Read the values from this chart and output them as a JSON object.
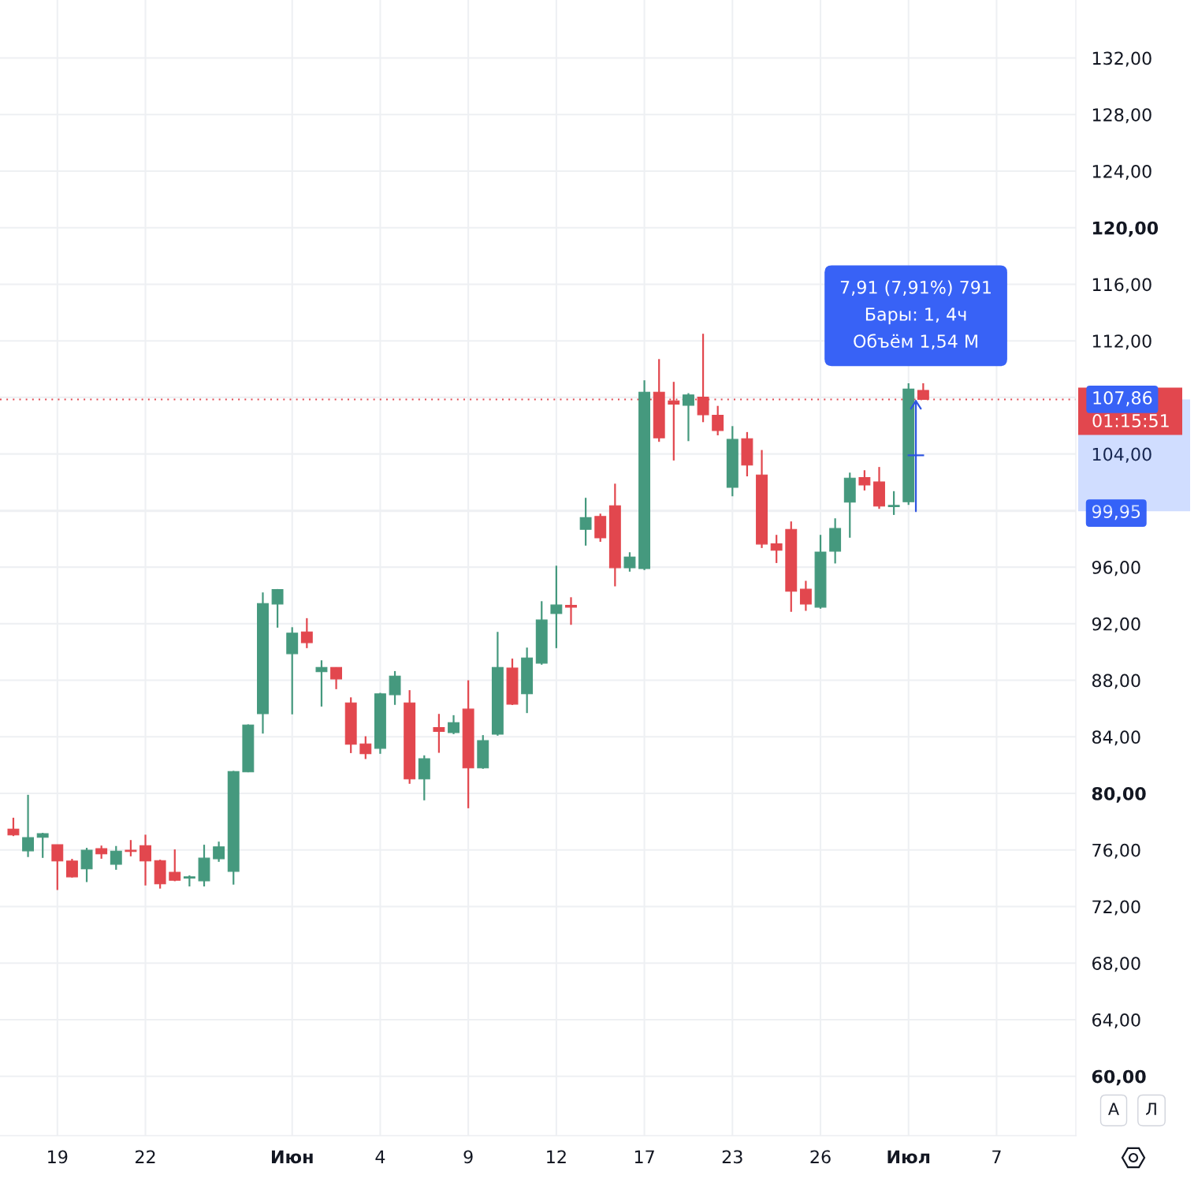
{
  "chart_data": {
    "type": "candlestick",
    "categories": [
      null,
      null,
      null,
      "19",
      null,
      null,
      null,
      null,
      null,
      "22",
      null,
      null,
      null,
      null,
      null,
      null,
      null,
      null,
      null,
      "Июн",
      null,
      null,
      null,
      null,
      null,
      "4",
      null,
      null,
      null,
      null,
      null,
      "9",
      null,
      null,
      null,
      null,
      null,
      "12",
      null,
      null,
      null,
      null,
      null,
      "17",
      null,
      null,
      null,
      null,
      null,
      "23",
      null,
      null,
      null,
      null,
      null,
      "26",
      null,
      null,
      null,
      null,
      null,
      "Июл",
      null,
      null,
      null,
      null,
      null,
      "7"
    ],
    "ohlc": [
      [
        77.48,
        78.28,
        76.98,
        77.06
      ],
      [
        75.94,
        79.9,
        75.5,
        76.87
      ],
      [
        76.89,
        77.21,
        75.44,
        77.15
      ],
      [
        76.37,
        76.37,
        73.17,
        75.22
      ],
      [
        75.22,
        75.37,
        74.05,
        74.1
      ],
      [
        74.66,
        76.15,
        73.73,
        75.98
      ],
      [
        76.09,
        76.31,
        75.38,
        75.72
      ],
      [
        74.99,
        76.28,
        74.6,
        75.92
      ],
      [
        75.98,
        76.7,
        75.55,
        75.89
      ],
      [
        76.31,
        77.08,
        73.49,
        75.22
      ],
      [
        75.25,
        75.31,
        73.27,
        73.6
      ],
      [
        74.42,
        76.04,
        73.79,
        73.86
      ],
      [
        74.01,
        74.2,
        73.42,
        74.1
      ],
      [
        73.82,
        76.37,
        73.42,
        75.42
      ],
      [
        75.38,
        76.59,
        75.16,
        76.22
      ],
      [
        74.49,
        81.59,
        73.55,
        81.55
      ],
      [
        81.52,
        84.88,
        81.5,
        84.84
      ],
      [
        85.64,
        94.21,
        84.23,
        93.43
      ],
      [
        93.39,
        94.45,
        91.72,
        94.41
      ],
      [
        89.88,
        91.75,
        85.59,
        91.33
      ],
      [
        91.42,
        92.39,
        90.27,
        90.66
      ],
      [
        88.6,
        89.41,
        86.14,
        88.91
      ],
      [
        88.91,
        88.91,
        87.37,
        88.09
      ],
      [
        86.4,
        86.79,
        82.85,
        83.47
      ],
      [
        83.5,
        84.04,
        82.43,
        82.8
      ],
      [
        83.19,
        87.11,
        82.8,
        87.04
      ],
      [
        86.98,
        88.65,
        86.26,
        88.3
      ],
      [
        86.4,
        87.3,
        80.68,
        81.02
      ],
      [
        81.02,
        82.69,
        79.51,
        82.45
      ],
      [
        84.66,
        85.62,
        82.87,
        84.38
      ],
      [
        84.3,
        85.53,
        84.19,
        85.01
      ],
      [
        85.96,
        88.0,
        78.95,
        81.8
      ],
      [
        81.8,
        84.12,
        81.74,
        83.73
      ],
      [
        84.19,
        91.42,
        84.08,
        88.91
      ],
      [
        88.86,
        89.53,
        86.25,
        86.31
      ],
      [
        87.04,
        90.31,
        85.68,
        89.58
      ],
      [
        89.21,
        93.59,
        89.1,
        92.26
      ],
      [
        92.72,
        96.1,
        90.27,
        93.32
      ],
      [
        93.3,
        93.87,
        91.92,
        93.17
      ],
      [
        98.67,
        100.9,
        97.52,
        99.5
      ],
      [
        99.58,
        99.78,
        97.79,
        98.07
      ],
      [
        100.34,
        101.9,
        94.64,
        95.96
      ],
      [
        95.95,
        97.05,
        95.68,
        96.72
      ],
      [
        95.9,
        109.21,
        95.79,
        108.37
      ],
      [
        108.37,
        110.71,
        104.86,
        105.14
      ],
      [
        107.76,
        109.1,
        103.54,
        107.52
      ],
      [
        107.44,
        108.3,
        104.91,
        108.18
      ],
      [
        108.02,
        112.5,
        106.25,
        106.77
      ],
      [
        106.74,
        107.4,
        105.32,
        105.66
      ],
      [
        101.64,
        105.97,
        101.01,
        105.03
      ],
      [
        105.08,
        105.55,
        102.42,
        103.21
      ],
      [
        102.52,
        104.28,
        97.35,
        97.63
      ],
      [
        97.65,
        98.28,
        96.29,
        97.19
      ],
      [
        98.67,
        99.23,
        92.84,
        94.29
      ],
      [
        94.44,
        95.03,
        92.91,
        93.39
      ],
      [
        93.17,
        98.28,
        93.06,
        97.06
      ],
      [
        97.13,
        99.45,
        96.26,
        98.73
      ],
      [
        100.59,
        102.68,
        98.08,
        102.29
      ],
      [
        102.33,
        102.85,
        101.42,
        101.81
      ],
      [
        102.02,
        103.08,
        100.12,
        100.31
      ],
      [
        100.27,
        101.37,
        99.69,
        100.36
      ],
      [
        100.62,
        109.0,
        100.4,
        108.59
      ],
      [
        108.5,
        109.0,
        107.86,
        107.86
      ],
      null,
      null,
      null,
      null,
      null
    ],
    "colors": [
      "#e2474e",
      "#45997e",
      "#45997e",
      "#e2474e",
      "#e2474e",
      "#45997e",
      "#e2474e",
      "#45997e",
      "#e2474e",
      "#e2474e",
      "#e2474e",
      "#e2474e",
      "#45997e",
      "#45997e",
      "#45997e",
      "#45997e",
      "#45997e",
      "#45997e",
      "#45997e",
      "#45997e",
      "#e2474e",
      "#45997e",
      "#e2474e",
      "#e2474e",
      "#e2474e",
      "#45997e",
      "#45997e",
      "#e2474e",
      "#45997e",
      "#e2474e",
      "#45997e",
      "#e2474e",
      "#45997e",
      "#45997e",
      "#e2474e",
      "#45997e",
      "#45997e",
      "#45997e",
      "#e2474e",
      "#45997e",
      "#e2474e",
      "#e2474e",
      "#45997e",
      "#45997e",
      "#e2474e",
      "#e2474e",
      "#45997e",
      "#e2474e",
      "#e2474e",
      "#45997e",
      "#e2474e",
      "#e2474e",
      "#e2474e",
      "#e2474e",
      "#e2474e",
      "#45997e",
      "#45997e",
      "#45997e",
      "#e2474e",
      "#e2474e",
      "#45997e",
      "#45997e",
      "#e2474e",
      null,
      null,
      null,
      null,
      null
    ],
    "ylim": [
      55.8,
      136.1
    ],
    "yticks": [
      {
        "value": 60,
        "label": "60,00"
      },
      {
        "value": 64,
        "label": "64,00"
      },
      {
        "value": 68,
        "label": "68,00"
      },
      {
        "value": 72,
        "label": "72,00"
      },
      {
        "value": 76,
        "label": "76,00"
      },
      {
        "value": 80,
        "label": "80,00"
      },
      {
        "value": 84,
        "label": "84,00"
      },
      {
        "value": 88,
        "label": "88,00"
      },
      {
        "value": 92,
        "label": "92,00"
      },
      {
        "value": 96,
        "label": "96,00"
      },
      {
        "value": 99.95,
        "label": "99,95"
      },
      {
        "value": 100,
        "label": null
      },
      {
        "value": 104,
        "label": "104,00"
      },
      {
        "value": 108,
        "label": null
      },
      {
        "value": 112,
        "label": "112,00"
      },
      {
        "value": 116,
        "label": "116,00"
      },
      {
        "value": 120,
        "label": "120,00"
      },
      {
        "value": 124,
        "label": "124,00"
      },
      {
        "value": 128,
        "label": "128,00"
      },
      {
        "value": 132,
        "label": "132,00"
      }
    ],
    "grid": true,
    "ref_lines": [
      {
        "axis": "y",
        "value": 107.86,
        "label": "107,86",
        "color": "#e2474e",
        "line_style": "dotted"
      }
    ],
    "annotations": [
      {
        "text": "7,91 (7,91%) 791\nБары: 1, 4ч\nОбъём 1,54 M",
        "x": "Июл",
        "y": 107.86
      },
      "01:15:51",
      "А",
      "Л"
    ]
  }
}
